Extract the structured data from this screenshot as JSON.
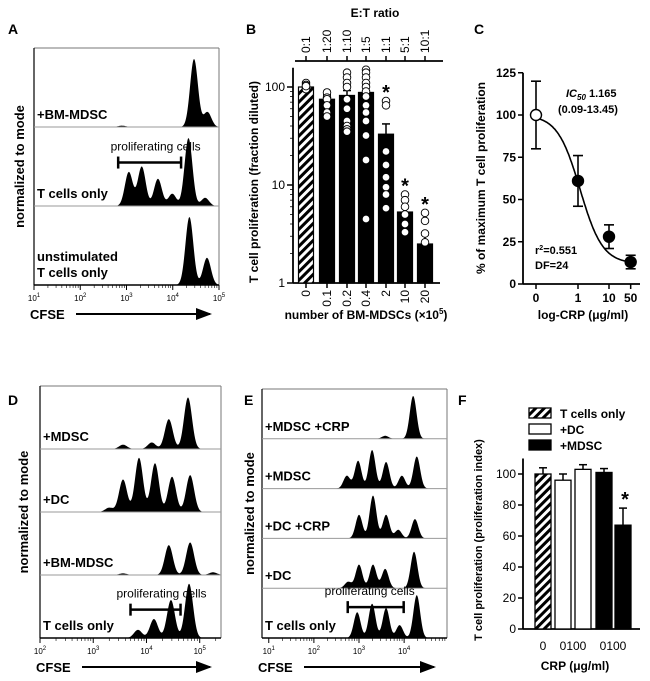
{
  "colors": {
    "ink": "#000000",
    "paper": "#ffffff",
    "separator": "#9a9a9a"
  },
  "chart_data": [
    {
      "panel": "A",
      "type": "histogram",
      "ylabel": "normalized to mode",
      "xlabel": "CFSE",
      "x_scale": "log",
      "xlim_log10": [
        1,
        5
      ],
      "ticks": [
        [
          "10",
          "1"
        ],
        [
          "10",
          "2"
        ],
        [
          "10",
          "3"
        ],
        [
          "10",
          "4"
        ],
        [
          "10",
          "5"
        ]
      ],
      "bracket_label": "proliferating cells",
      "bracket_range_log10": [
        2.82,
        4.18
      ],
      "bracket_row": 1,
      "rows": [
        {
          "label": [
            "+BM-MDSC"
          ],
          "peaks": [
            [
              4.46,
              1.0
            ],
            [
              4.75,
              0.22
            ],
            [
              2.9,
              0.02
            ]
          ]
        },
        {
          "label": [
            "T cells only"
          ],
          "peaks": [
            [
              3.05,
              0.5
            ],
            [
              3.33,
              0.58
            ],
            [
              3.68,
              0.4
            ],
            [
              3.99,
              0.18
            ],
            [
              4.34,
              1.0
            ],
            [
              4.7,
              0.12
            ]
          ]
        },
        {
          "label": [
            "unstimulated",
            "T cells only"
          ],
          "peaks": [
            [
              4.36,
              1.0
            ],
            [
              4.74,
              0.4
            ]
          ]
        }
      ]
    },
    {
      "panel": "B",
      "type": "bar",
      "ylabel": "T cell proliferation (fraction diluted)",
      "xlabel": "number of BM-MDSCs (×10",
      "xlabel_sup": "5",
      "xlabel_end": ")",
      "top_axis_title": "E:T ratio",
      "y_scale": "log",
      "ylim": [
        1,
        150
      ],
      "yticks": [
        "1",
        "10",
        "100"
      ],
      "categories": [
        "0",
        "0.1",
        "0.2",
        "0.4",
        "2",
        "10",
        "20"
      ],
      "top_categories": [
        "0:1",
        "1:20",
        "1:10",
        "1:5",
        "1:1",
        "5:1",
        "10:1"
      ],
      "values": [
        100,
        75,
        82,
        88,
        33,
        5.3,
        2.5
      ],
      "errors": [
        5,
        8,
        10,
        12,
        9,
        0.8,
        0.6
      ],
      "fill": [
        "hatched",
        "solid",
        "solid",
        "solid",
        "solid",
        "solid",
        "solid"
      ],
      "significant": [
        false,
        false,
        false,
        false,
        true,
        true,
        true
      ],
      "significance_mark": "*",
      "points": [
        [
          110,
          105,
          100,
          98,
          95,
          102
        ],
        [
          88,
          78,
          75,
          65,
          55,
          50
        ],
        [
          140,
          125,
          110,
          100,
          75,
          60,
          45,
          40,
          37,
          35
        ],
        [
          150,
          140,
          125,
          110,
          100,
          90,
          80,
          65,
          55,
          45,
          32,
          18,
          4.5
        ],
        [
          72,
          65,
          22,
          16,
          12,
          9.5,
          8,
          5.8
        ],
        [
          8,
          7,
          6,
          5,
          4,
          3.3
        ],
        [
          5.2,
          4.3,
          3.2,
          2.6
        ]
      ]
    },
    {
      "panel": "C",
      "type": "scatter",
      "ylabel": "% of maximum T cell proliferation",
      "xlabel": "log-CRP (μg/ml)",
      "ylim": [
        0,
        125
      ],
      "yticks": [
        "0",
        "25",
        "50",
        "75",
        "100",
        "125"
      ],
      "x": [
        "0",
        "1",
        "10",
        "50"
      ],
      "x_numeric": [
        0,
        1,
        10,
        50
      ],
      "y": [
        100,
        61,
        28,
        13
      ],
      "errors": [
        20,
        15,
        7,
        4
      ],
      "open_point": [
        true,
        false,
        false,
        false
      ],
      "fit": {
        "type": "sigmoidal dose-response",
        "top": 100,
        "bottom": 12,
        "ic50": 1.165,
        "hill": 1.2
      },
      "annotations": {
        "ic50_label": "IC",
        "ic50_sub": "50",
        "ic50_value": " 1.165",
        "ic50_ci": "(0.09-13.45)",
        "r2_label": "r",
        "r2_sup": "2",
        "r2_value": "=0.551",
        "df": "DF=24"
      }
    },
    {
      "panel": "D",
      "type": "histogram",
      "ylabel": "normalized to mode",
      "xlabel": "CFSE",
      "x_scale": "log",
      "xlim_log10": [
        2,
        5.4
      ],
      "ticks": [
        [
          "10",
          "2"
        ],
        [
          "10",
          "3"
        ],
        [
          "10",
          "4"
        ],
        [
          "10",
          "5"
        ]
      ],
      "bracket_label": "proliferating cells",
      "bracket_range_log10": [
        3.7,
        4.64
      ],
      "bracket_row": 3,
      "rows": [
        {
          "label": [
            "+MDSC"
          ],
          "peaks": [
            [
              3.56,
              0.08
            ],
            [
              4.1,
              0.12
            ],
            [
              4.42,
              0.55
            ],
            [
              4.78,
              0.95
            ]
          ]
        },
        {
          "label": [
            "+DC"
          ],
          "peaks": [
            [
              3.3,
              0.08
            ],
            [
              3.56,
              0.6
            ],
            [
              3.86,
              1.0
            ],
            [
              4.16,
              0.9
            ],
            [
              4.48,
              0.65
            ],
            [
              4.82,
              0.68
            ]
          ]
        },
        {
          "label": [
            "+BM-MDSC"
          ],
          "peaks": [
            [
              3.56,
              0.03
            ],
            [
              4.42,
              0.55
            ],
            [
              4.82,
              0.6
            ],
            [
              5.25,
              0.05
            ]
          ]
        },
        {
          "label": [
            "T cells only"
          ],
          "peaks": [
            [
              3.84,
              0.15
            ],
            [
              4.14,
              0.35
            ],
            [
              4.46,
              0.7
            ],
            [
              4.8,
              1.0
            ]
          ]
        }
      ]
    },
    {
      "panel": "E",
      "type": "histogram",
      "ylabel": "normalized to mode",
      "xlabel": "CFSE",
      "x_scale": "log",
      "xlim_log10": [
        0.85,
        4.95
      ],
      "ticks": [
        [
          "10",
          "1"
        ],
        [
          "10",
          "2"
        ],
        [
          "10",
          "3"
        ],
        [
          "10",
          "4"
        ]
      ],
      "bracket_label": "proliferating cells",
      "bracket_range_log10": [
        2.75,
        3.99
      ],
      "bracket_row": 4,
      "rows": [
        {
          "label": [
            "+MDSC +CRP"
          ],
          "peaks": [
            [
              3.58,
              0.07
            ],
            [
              4.2,
              1.0
            ]
          ]
        },
        {
          "label": [
            "+MDSC"
          ],
          "peaks": [
            [
              2.73,
              0.3
            ],
            [
              2.98,
              0.65
            ],
            [
              3.29,
              0.9
            ],
            [
              3.6,
              0.62
            ],
            [
              3.95,
              0.3
            ],
            [
              4.28,
              0.75
            ]
          ]
        },
        {
          "label": [
            "+DC +CRP"
          ],
          "peaks": [
            [
              3.0,
              0.55
            ],
            [
              3.31,
              1.0
            ],
            [
              3.6,
              0.55
            ],
            [
              3.87,
              0.2
            ],
            [
              4.24,
              0.45
            ]
          ]
        },
        {
          "label": [
            "+DC"
          ],
          "peaks": [
            [
              2.76,
              0.15
            ],
            [
              3.0,
              0.55
            ],
            [
              3.31,
              0.55
            ],
            [
              3.58,
              0.45
            ],
            [
              4.22,
              0.85
            ]
          ]
        },
        {
          "label": [
            "T cells only"
          ],
          "peaks": [
            [
              2.96,
              0.6
            ],
            [
              3.29,
              0.8
            ],
            [
              3.6,
              0.7
            ],
            [
              3.9,
              0.3
            ],
            [
              4.28,
              1.0
            ]
          ]
        }
      ]
    },
    {
      "panel": "F",
      "type": "bar",
      "ylabel": "T cell proliferation (proliferation index)",
      "xlabel": "CRP (μg/ml)",
      "ylim": [
        0,
        110
      ],
      "yticks": [
        "0",
        "20",
        "40",
        "60",
        "80",
        "100"
      ],
      "tick_labels": [
        "0",
        "0100",
        "0100"
      ],
      "legend": [
        {
          "name": "T cells only",
          "fill": "hatched"
        },
        {
          "name": "+DC",
          "fill": "white"
        },
        {
          "name": "+MDSC",
          "fill": "solid"
        }
      ],
      "bars": [
        {
          "group": "T cells only",
          "crp": 0,
          "value": 100,
          "error": 4
        },
        {
          "group": "+DC",
          "crp": 0,
          "value": 96,
          "error": 4
        },
        {
          "group": "+DC",
          "crp": 100,
          "value": 103,
          "error": 3
        },
        {
          "group": "+MDSC",
          "crp": 0,
          "value": 101,
          "error": 2.5
        },
        {
          "group": "+MDSC",
          "crp": 100,
          "value": 67,
          "error": 11
        }
      ],
      "significant": [
        false,
        false,
        false,
        false,
        true
      ],
      "significance_mark": "*"
    }
  ]
}
